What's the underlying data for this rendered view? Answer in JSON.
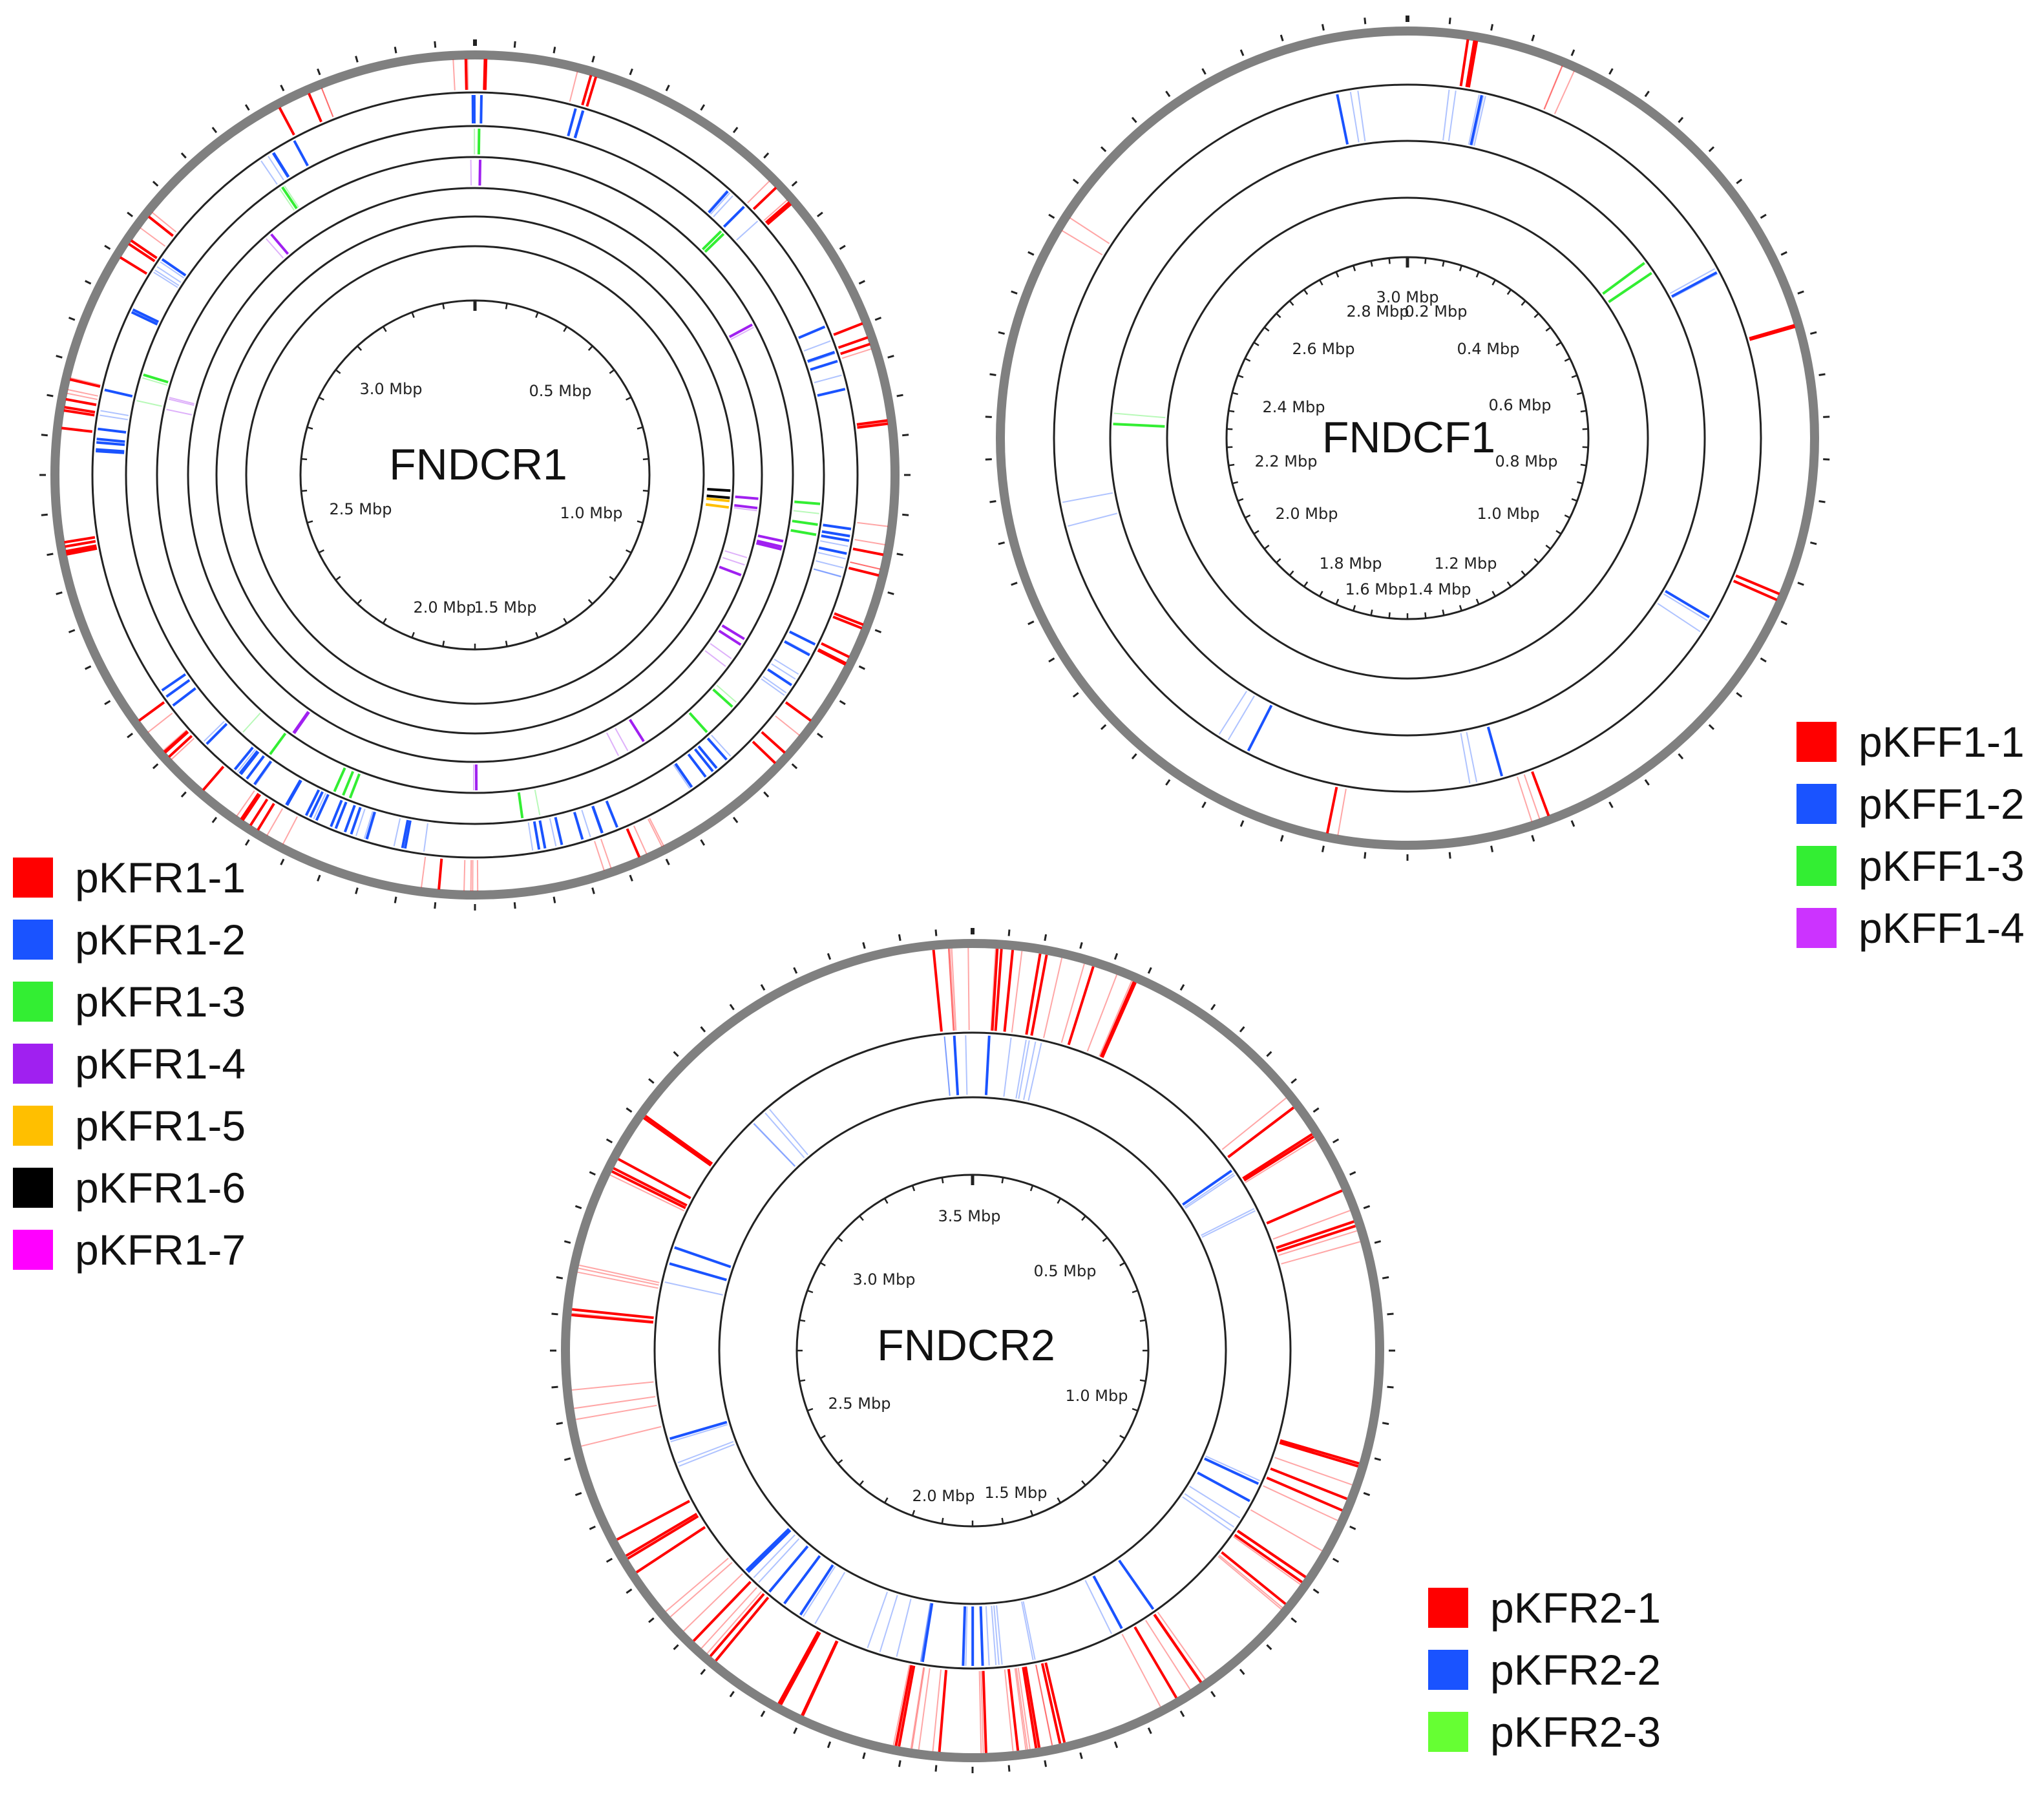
{
  "colors": {
    "red": "#ff0000",
    "blue": "#1a53ff",
    "green": "#33ee33",
    "purple": "#a020f0",
    "orange": "#ffbf00",
    "black": "#000000",
    "magenta": "#ff00ff",
    "ring": "#222222",
    "backbone": "#808080"
  },
  "maps": [
    {
      "id": "fndcr1",
      "name": "FNDCR1",
      "size_mbp": 3.4,
      "tick_labels": [
        "0.5 Mbp",
        "1.0 Mbp",
        "1.5 Mbp",
        "2.0 Mbp",
        "2.5 Mbp",
        "3.0 Mbp"
      ],
      "tracks": [
        "pKFR1-1",
        "pKFR1-2",
        "pKFR1-3",
        "pKFR1-4",
        "pKFR1-5",
        "pKFR1-6",
        "pKFR1-7"
      ]
    },
    {
      "id": "fndcf1",
      "name": "FNDCF1",
      "size_mbp": 3.1,
      "tick_labels": [
        "0.2 Mbp",
        "0.4 Mbp",
        "0.6 Mbp",
        "0.8 Mbp",
        "1.0 Mbp",
        "1.2 Mbp",
        "1.4 Mbp",
        "1.6 Mbp",
        "1.8 Mbp",
        "2.0 Mbp",
        "2.2 Mbp",
        "2.4 Mbp",
        "2.6 Mbp",
        "2.8 Mbp",
        "3.0 Mbp"
      ],
      "tracks": [
        "pKFF1-1",
        "pKFF1-2",
        "pKFF1-3",
        "pKFF1-4"
      ]
    },
    {
      "id": "fndcr2",
      "name": "FNDCR2",
      "size_mbp": 3.6,
      "tick_labels": [
        "0.5 Mbp",
        "1.0 Mbp",
        "1.5 Mbp",
        "2.0 Mbp",
        "2.5 Mbp",
        "3.0 Mbp",
        "3.5 Mbp"
      ],
      "tracks": [
        "pKFR2-1",
        "pKFR2-2",
        "pKFR2-3"
      ]
    }
  ],
  "legends": {
    "fndcr1": [
      {
        "label": "pKFR1-1",
        "color": "#ff0000"
      },
      {
        "label": "pKFR1-2",
        "color": "#1a53ff"
      },
      {
        "label": "pKFR1-3",
        "color": "#33ee33"
      },
      {
        "label": "pKFR1-4",
        "color": "#a020f0"
      },
      {
        "label": "pKFR1-5",
        "color": "#ffbf00"
      },
      {
        "label": "pKFR1-6",
        "color": "#000000"
      },
      {
        "label": "pKFR1-7",
        "color": "#ff00ff"
      }
    ],
    "fndcf1": [
      {
        "label": "pKFF1-1",
        "color": "#ff0000"
      },
      {
        "label": "pKFF1-2",
        "color": "#1a53ff"
      },
      {
        "label": "pKFF1-3",
        "color": "#33ee33"
      },
      {
        "label": "pKFF1-4",
        "color": "#cc33ff"
      }
    ],
    "fndcr2": [
      {
        "label": "pKFR2-1",
        "color": "#ff0000"
      },
      {
        "label": "pKFR2-2",
        "color": "#1a53ff"
      },
      {
        "label": "pKFR2-3",
        "color": "#66ff33"
      }
    ]
  }
}
